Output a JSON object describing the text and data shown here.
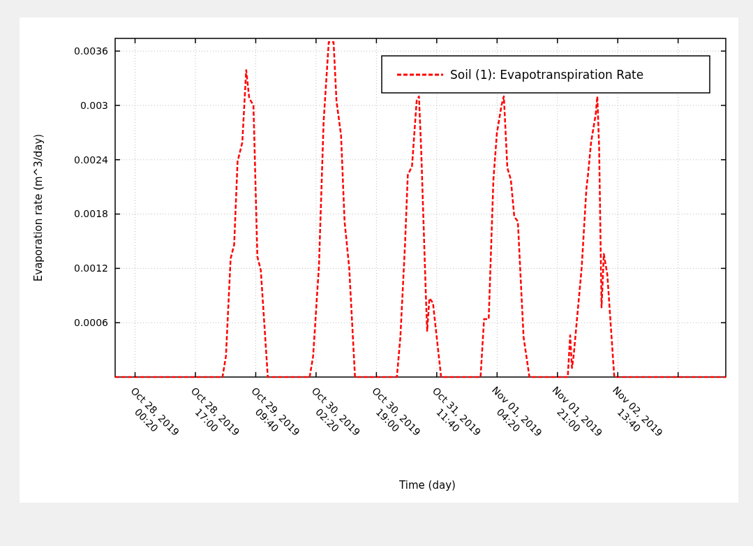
{
  "chart_data": {
    "type": "line",
    "xlabel": "Time (day)",
    "ylabel": "Evaporation rate (m^3/day)",
    "x": [
      "2019-10-27T18:50",
      "2019-10-29T00:29",
      "2019-10-29T01:26",
      "2019-10-29T02:44",
      "2019-10-29T03:42",
      "2019-10-29T04:39",
      "2019-10-29T05:57",
      "2019-10-29T07:02",
      "2019-10-29T07:52",
      "2019-10-29T09:02",
      "2019-10-29T10:07",
      "2019-10-29T11:04",
      "2019-10-29T13:00",
      "2019-10-30T00:34",
      "2019-10-30T01:31",
      "2019-10-30T03:08",
      "2019-10-30T04:25",
      "2019-10-30T05:50",
      "2019-10-30T07:10",
      "2019-10-30T07:58",
      "2019-10-30T09:14",
      "2019-10-30T10:12",
      "2019-10-30T11:29",
      "2019-10-30T13:05",
      "2019-10-31T00:39",
      "2019-10-31T01:37",
      "2019-10-31T02:54",
      "2019-10-31T03:40",
      "2019-10-31T04:50",
      "2019-10-31T06:07",
      "2019-10-31T06:45",
      "2019-10-31T07:23",
      "2019-10-31T08:41",
      "2019-10-31T09:01",
      "2019-10-31T09:38",
      "2019-10-31T10:37",
      "2019-10-31T12:52",
      "2019-10-31T23:46",
      "2019-11-01T00:44",
      "2019-11-01T02:01",
      "2019-11-01T03:19",
      "2019-11-01T04:16",
      "2019-11-01T05:33",
      "2019-11-01T06:12",
      "2019-11-01T07:10",
      "2019-11-01T08:08",
      "2019-11-01T09:05",
      "2019-11-01T10:04",
      "2019-11-01T11:39",
      "2019-11-01T13:16",
      "2019-11-01T23:51",
      "2019-11-02T00:31",
      "2019-11-02T01:01",
      "2019-11-02T01:28",
      "2019-11-02T03:42",
      "2019-11-02T05:00",
      "2019-11-02T05:26",
      "2019-11-02T06:17",
      "2019-11-02T07:34",
      "2019-11-02T08:01",
      "2019-11-02T08:31",
      "2019-11-02T09:11",
      "2019-11-02T09:49",
      "2019-11-02T10:47",
      "2019-11-02T12:42",
      "2019-11-03T19:30"
    ],
    "series": [
      {
        "name": "Soil (1): Evapotranspiration Rate",
        "color": "#ff0000",
        "line_style": "dashed",
        "values": [
          0,
          0,
          0.00023,
          0.00131,
          0.00146,
          0.00238,
          0.00259,
          0.00339,
          0.00308,
          0.003,
          0.00133,
          0.00118,
          0,
          0,
          0.00023,
          0.00123,
          0.00282,
          0.0037,
          0.0037,
          0.00305,
          0.00267,
          0.00172,
          0.00121,
          0,
          0,
          0.00044,
          0.00146,
          0.00223,
          0.00233,
          0.00305,
          0.0031,
          0.00249,
          0.00087,
          0.00051,
          0.00087,
          0.00082,
          0,
          0,
          0.00064,
          0.00064,
          0.00218,
          0.00269,
          0.003,
          0.0031,
          0.00231,
          0.00218,
          0.00177,
          0.00172,
          0.00044,
          0,
          0,
          0.00046,
          0.0001,
          0.00023,
          0.00121,
          0.00208,
          0.00223,
          0.00259,
          0.0029,
          0.0031,
          0.00254,
          0.00077,
          0.00136,
          0.00113,
          0,
          0
        ]
      }
    ],
    "xlim": [
      "2019-10-27T18:50",
      "2019-11-03T19:30"
    ],
    "xticks": [
      {
        "value": "2019-10-28T00:20",
        "label": "Oct 28, 2019\n00:20"
      },
      {
        "value": "2019-10-28T17:00",
        "label": "Oct 28, 2019\n17:00"
      },
      {
        "value": "2019-10-29T09:40",
        "label": "Oct 29, 2019\n09:40"
      },
      {
        "value": "2019-10-30T02:20",
        "label": "Oct 30, 2019\n02:20"
      },
      {
        "value": "2019-10-30T19:00",
        "label": "Oct 30, 2019\n19:00"
      },
      {
        "value": "2019-10-31T11:40",
        "label": "Oct 31, 2019\n11:40"
      },
      {
        "value": "2019-11-01T04:20",
        "label": "Nov 01, 2019\n04:20"
      },
      {
        "value": "2019-11-01T21:00",
        "label": "Nov 01, 2019\n21:00"
      },
      {
        "value": "2019-11-02T13:40",
        "label": "Nov 02, 2019\n13:40"
      },
      {
        "value": "2019-11-03T06:20",
        "label": null
      }
    ],
    "ylim": [
      0,
      0.00374
    ],
    "yticks": [
      0.0006,
      0.0012,
      0.0018,
      0.0024,
      0.003,
      0.0036
    ],
    "grid": true,
    "legend": "top right",
    "marker": "none"
  }
}
